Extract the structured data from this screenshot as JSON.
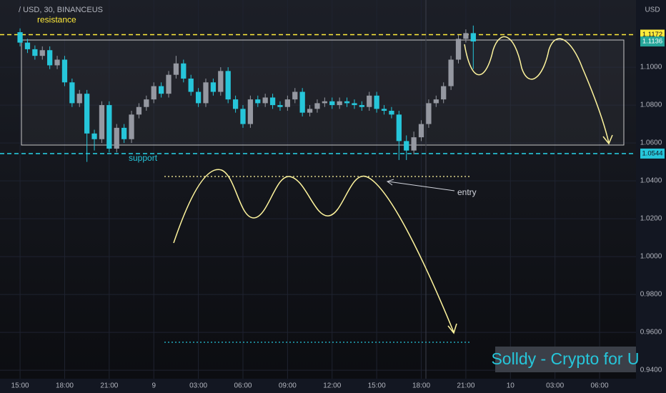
{
  "chart_data": {
    "type": "candlestick",
    "title": "/ USD, 30, BINANCEUS",
    "y_axis_label": "USD",
    "watermark": "Solldy - Crypto for U",
    "entry_label": "entry",
    "up_color": "#9598a1",
    "down_color": "#26c6da",
    "grid": true,
    "series": {
      "open": [
        1.1185,
        1.113,
        1.1095,
        1.106,
        1.109,
        1.101,
        1.104,
        1.092,
        1.081,
        1.086,
        1.065,
        1.062,
        1.08,
        1.057,
        1.068,
        1.062,
        1.075,
        1.079,
        1.083,
        1.09,
        1.086,
        1.096,
        1.102,
        1.094,
        1.087,
        1.081,
        1.092,
        1.087,
        1.098,
        1.083,
        1.078,
        1.07,
        1.083,
        1.081,
        1.084,
        1.08,
        1.079,
        1.083,
        1.087,
        1.076,
        1.078,
        1.081,
        1.082,
        1.08,
        1.082,
        1.081,
        1.08,
        1.079,
        1.085,
        1.078,
        1.077,
        1.075,
        1.061,
        1.056,
        1.063,
        1.07,
        1.081,
        1.083,
        1.09,
        1.104,
        1.115,
        1.118
      ],
      "high": [
        1.1205,
        1.115,
        1.1115,
        1.111,
        1.111,
        1.106,
        1.106,
        1.094,
        1.088,
        1.088,
        1.067,
        1.082,
        1.082,
        1.07,
        1.07,
        1.077,
        1.081,
        1.085,
        1.092,
        1.092,
        1.098,
        1.106,
        1.104,
        1.096,
        1.089,
        1.094,
        1.094,
        1.1,
        1.1,
        1.085,
        1.08,
        1.085,
        1.085,
        1.086,
        1.086,
        1.082,
        1.085,
        1.089,
        1.089,
        1.08,
        1.083,
        1.084,
        1.084,
        1.084,
        1.084,
        1.083,
        1.082,
        1.087,
        1.087,
        1.08,
        1.079,
        1.077,
        1.064,
        1.066,
        1.072,
        1.083,
        1.085,
        1.092,
        1.106,
        1.117,
        1.12,
        1.122
      ],
      "low": [
        1.111,
        1.1075,
        1.104,
        1.104,
        1.099,
        1.099,
        1.09,
        1.079,
        1.079,
        1.05,
        1.056,
        1.06,
        1.055,
        1.055,
        1.06,
        1.06,
        1.073,
        1.077,
        1.081,
        1.084,
        1.084,
        1.094,
        1.092,
        1.085,
        1.079,
        1.079,
        1.085,
        1.085,
        1.081,
        1.076,
        1.068,
        1.068,
        1.079,
        1.079,
        1.078,
        1.077,
        1.077,
        1.081,
        1.074,
        1.074,
        1.076,
        1.079,
        1.078,
        1.078,
        1.079,
        1.078,
        1.077,
        1.077,
        1.076,
        1.075,
        1.073,
        1.051,
        1.051,
        1.054,
        1.061,
        1.068,
        1.079,
        1.081,
        1.088,
        1.102,
        1.113,
        1.099
      ],
      "close": [
        1.113,
        1.1095,
        1.106,
        1.109,
        1.101,
        1.104,
        1.092,
        1.081,
        1.086,
        1.065,
        1.062,
        1.08,
        1.057,
        1.068,
        1.062,
        1.075,
        1.079,
        1.083,
        1.09,
        1.086,
        1.096,
        1.102,
        1.094,
        1.087,
        1.081,
        1.092,
        1.087,
        1.098,
        1.083,
        1.078,
        1.07,
        1.083,
        1.081,
        1.084,
        1.08,
        1.079,
        1.083,
        1.087,
        1.076,
        1.078,
        1.081,
        1.082,
        1.08,
        1.082,
        1.081,
        1.08,
        1.079,
        1.085,
        1.078,
        1.077,
        1.075,
        1.061,
        1.056,
        1.063,
        1.07,
        1.081,
        1.083,
        1.09,
        1.104,
        1.115,
        1.118,
        1.1136
      ]
    },
    "levels": [
      {
        "name": "resistance",
        "value": 1.1172,
        "color": "#ffeb3b"
      },
      {
        "name": "support",
        "value": 1.0544,
        "color": "#26c6da"
      }
    ],
    "last_price_color": "#26a69a",
    "xlim": [
      -2.7,
      82.9
    ],
    "xticks": [
      {
        "value": 0,
        "label": "15:00"
      },
      {
        "value": 6,
        "label": "18:00"
      },
      {
        "value": 12,
        "label": "21:00"
      },
      {
        "value": 18,
        "label": "9"
      },
      {
        "value": 24,
        "label": "03:00"
      },
      {
        "value": 30,
        "label": "06:00"
      },
      {
        "value": 36,
        "label": "09:00"
      },
      {
        "value": 42,
        "label": "12:00"
      },
      {
        "value": 48,
        "label": "15:00"
      },
      {
        "value": 54,
        "label": "18:00"
      },
      {
        "value": 60,
        "label": "21:00"
      },
      {
        "value": 66,
        "label": "10"
      },
      {
        "value": 72,
        "label": "03:00"
      },
      {
        "value": 78,
        "label": "06:00"
      }
    ],
    "ylim": [
      0.9355,
      1.1355
    ],
    "yticks": [
      {
        "value": 0.94,
        "label": "0.9400"
      },
      {
        "value": 0.96,
        "label": "0.9600"
      },
      {
        "value": 0.98,
        "label": "0.9800"
      },
      {
        "value": 1.0,
        "label": "1.0000"
      },
      {
        "value": 1.02,
        "label": "1.0200"
      },
      {
        "value": 1.04,
        "label": "1.0400"
      },
      {
        "value": 1.06,
        "label": "1.0600"
      },
      {
        "value": 1.08,
        "label": "1.0800"
      },
      {
        "value": 1.1,
        "label": "1.1000"
      }
    ]
  }
}
